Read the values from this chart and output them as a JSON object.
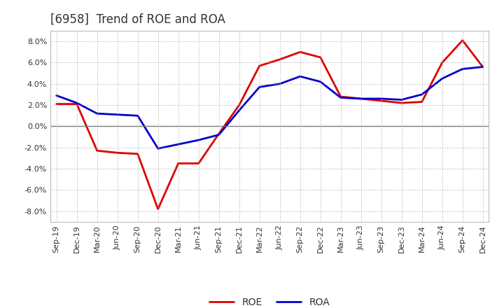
{
  "title": "[6958]  Trend of ROE and ROA",
  "x_labels": [
    "Sep-19",
    "Dec-19",
    "Mar-20",
    "Jun-20",
    "Sep-20",
    "Dec-20",
    "Mar-21",
    "Jun-21",
    "Sep-21",
    "Dec-21",
    "Mar-22",
    "Jun-22",
    "Sep-22",
    "Dec-22",
    "Mar-23",
    "Jun-23",
    "Sep-23",
    "Dec-23",
    "Mar-24",
    "Jun-24",
    "Sep-24",
    "Dec-24"
  ],
  "roe": [
    2.1,
    2.1,
    -2.3,
    -2.5,
    -2.6,
    -7.8,
    -3.5,
    -3.5,
    -0.7,
    2.0,
    5.7,
    6.3,
    7.0,
    6.5,
    2.8,
    2.6,
    2.4,
    2.2,
    2.3,
    6.0,
    8.1,
    5.6
  ],
  "roa": [
    2.9,
    2.2,
    1.2,
    1.1,
    1.0,
    -2.1,
    -1.7,
    -1.3,
    -0.8,
    1.5,
    3.7,
    4.0,
    4.7,
    4.2,
    2.7,
    2.6,
    2.6,
    2.5,
    3.0,
    4.5,
    5.4,
    5.6
  ],
  "roe_color": "#dd0000",
  "roa_color": "#0000cc",
  "ylim": [
    -9.0,
    9.0
  ],
  "yticks": [
    -8.0,
    -6.0,
    -4.0,
    -2.0,
    0.0,
    2.0,
    4.0,
    6.0,
    8.0
  ],
  "bg_color": "#ffffff",
  "plot_bg_color": "#ffffff",
  "grid_color": "#aaaaaa",
  "line_width": 2.0,
  "title_fontsize": 12,
  "tick_fontsize": 8,
  "legend_fontsize": 10
}
